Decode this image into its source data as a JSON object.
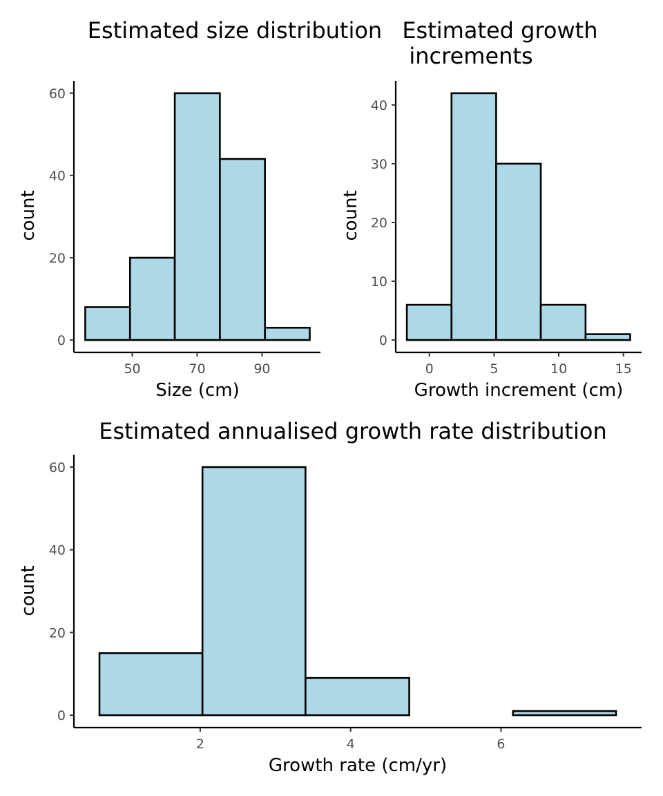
{
  "chart_data": [
    {
      "type": "bar",
      "title": "Estimated size distribution",
      "xlabel": "Size (cm)",
      "ylabel": "count",
      "bins": [
        [
          35.5,
          49.3
        ],
        [
          49.3,
          63.1
        ],
        [
          63.1,
          77.0
        ],
        [
          77.0,
          90.9
        ],
        [
          90.9,
          104.7
        ]
      ],
      "values": [
        8,
        20,
        60,
        44,
        3
      ],
      "xticks": [
        50,
        70,
        90
      ],
      "yticks": [
        0,
        20,
        40,
        60
      ],
      "xlim": [
        32.0,
        108.0
      ],
      "ylim": [
        -3,
        63
      ],
      "colors": {
        "fill": "#add8e6",
        "stroke": "#000000"
      }
    },
    {
      "type": "bar",
      "title": "Estimated growth increments",
      "xlabel": "Growth increment (cm)",
      "ylabel": "count",
      "bins": [
        [
          -1.74,
          1.71
        ],
        [
          1.71,
          5.16
        ],
        [
          5.16,
          8.61
        ],
        [
          8.61,
          12.07
        ],
        [
          12.07,
          15.52
        ]
      ],
      "values": [
        6,
        42,
        30,
        6,
        1
      ],
      "xticks": [
        0,
        5,
        10,
        15
      ],
      "yticks": [
        0,
        10,
        20,
        30,
        40
      ],
      "xlim": [
        -2.6,
        16.4
      ],
      "ylim": [
        -2.1,
        44.1
      ],
      "colors": {
        "fill": "#add8e6",
        "stroke": "#000000"
      }
    },
    {
      "type": "bar",
      "title": "Estimated annualised growth rate distribution",
      "xlabel": "Growth rate (cm/yr)",
      "ylabel": "count",
      "bins": [
        [
          0.66,
          2.03
        ],
        [
          2.03,
          3.4
        ],
        [
          3.4,
          4.78
        ],
        [
          4.78,
          6.16
        ],
        [
          6.16,
          7.53
        ]
      ],
      "values": [
        15,
        60,
        9,
        0,
        1
      ],
      "xticks": [
        2,
        4,
        6
      ],
      "yticks": [
        0,
        20,
        40,
        60
      ],
      "xlim": [
        0.32,
        7.87
      ],
      "ylim": [
        -3,
        63
      ],
      "colors": {
        "fill": "#add8e6",
        "stroke": "#000000"
      }
    }
  ]
}
